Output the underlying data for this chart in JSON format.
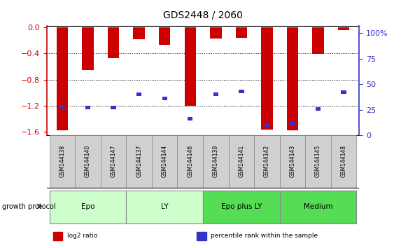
{
  "title": "GDS2448 / 2060",
  "samples": [
    "GSM144138",
    "GSM144140",
    "GSM144147",
    "GSM144137",
    "GSM144144",
    "GSM144146",
    "GSM144139",
    "GSM144141",
    "GSM144142",
    "GSM144143",
    "GSM144145",
    "GSM144148"
  ],
  "log2_ratio": [
    -1.58,
    -0.65,
    -0.47,
    -0.18,
    -0.27,
    -1.2,
    -0.17,
    -0.16,
    -1.57,
    -1.58,
    -0.41,
    -0.04
  ],
  "percentile_rank": [
    28,
    27,
    27,
    40,
    36,
    16,
    40,
    43,
    10,
    11,
    26,
    42
  ],
  "red_color": "#cc0000",
  "blue_color": "#3333cc",
  "bar_width": 0.45,
  "blue_bar_width": 0.2,
  "ylim_left": [
    -1.65,
    0.02
  ],
  "ylim_right": [
    0,
    107
  ],
  "yticks_left": [
    0,
    -0.4,
    -0.8,
    -1.2,
    -1.6
  ],
  "yticks_right": [
    0,
    25,
    50,
    75,
    100
  ],
  "ytick_labels_right": [
    "0",
    "25",
    "50",
    "75",
    "100%"
  ],
  "groups": [
    {
      "label": "Epo",
      "start": 0,
      "end": 3,
      "color": "#ccffcc"
    },
    {
      "label": "LY",
      "start": 3,
      "end": 6,
      "color": "#ccffcc"
    },
    {
      "label": "Epo plus LY",
      "start": 6,
      "end": 9,
      "color": "#55dd55"
    },
    {
      "label": "Medium",
      "start": 9,
      "end": 12,
      "color": "#55dd55"
    }
  ],
  "growth_protocol_label": "growth protocol",
  "legend_items": [
    {
      "color": "#cc0000",
      "label": "log2 ratio"
    },
    {
      "color": "#3333cc",
      "label": "percentile rank within the sample"
    }
  ],
  "bg_color": "#ffffff",
  "plot_bg": "#ffffff",
  "axis_color_left": "#cc0000",
  "axis_color_right": "#3333cc",
  "sample_label_bg": "#d0d0d0",
  "sample_label_border": "#888888"
}
